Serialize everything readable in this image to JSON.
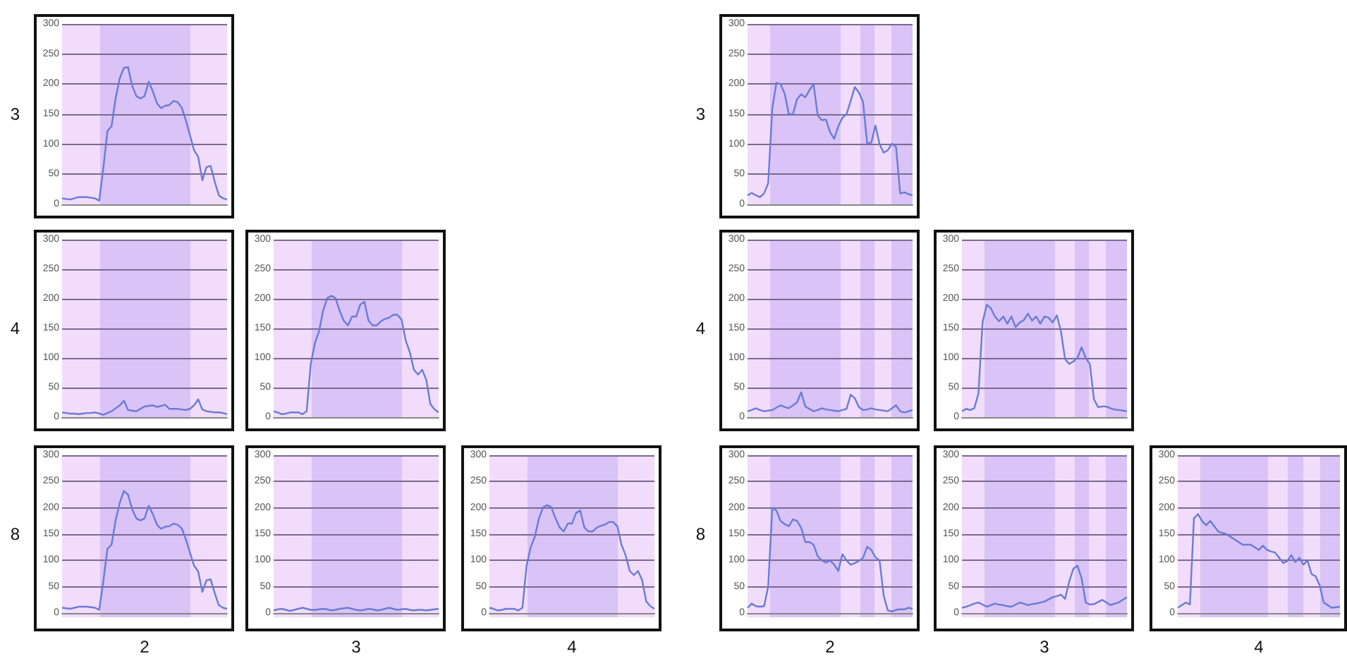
{
  "chart_data": [
    {
      "type": "line",
      "ylabel": "3",
      "color": "#6a7bd6",
      "categories": [
        null,
        null,
        null,
        null,
        null,
        null,
        null,
        null,
        null,
        null,
        null,
        null,
        null,
        null,
        null,
        null,
        null,
        null,
        null,
        null,
        null,
        null,
        null,
        null,
        null,
        null,
        null,
        null,
        null,
        null,
        null,
        null,
        null,
        null,
        null,
        null,
        null,
        null,
        null,
        null,
        null
      ],
      "values": [
        10,
        9,
        8,
        10,
        12,
        12,
        12,
        11,
        10,
        6,
        60,
        122,
        130,
        177,
        210,
        227,
        228,
        197,
        180,
        176,
        180,
        204,
        188,
        168,
        160,
        164,
        165,
        172,
        170,
        161,
        140,
        115,
        90,
        79,
        40,
        62,
        64,
        38,
        15,
        10,
        8
      ],
      "ylim": [
        0,
        300
      ],
      "yticks": [
        0,
        50,
        100,
        150,
        200,
        250,
        300
      ],
      "grid": "y",
      "tick_labels": "y"
    },
    {
      "type": "line",
      "ylabel": "3",
      "color": "#6a7bd6",
      "categories": [
        null,
        null,
        null,
        null,
        null,
        null,
        null,
        null,
        null,
        null,
        null,
        null,
        null,
        null,
        null,
        null,
        null,
        null,
        null,
        null,
        null,
        null,
        null,
        null,
        null,
        null,
        null,
        null,
        null,
        null,
        null,
        null,
        null,
        null,
        null,
        null,
        null,
        null,
        null,
        null,
        null
      ],
      "values": [
        15,
        19,
        15,
        12,
        18,
        35,
        160,
        202,
        200,
        184,
        150,
        150,
        175,
        183,
        178,
        190,
        200,
        148,
        140,
        141,
        120,
        109,
        130,
        144,
        150,
        172,
        195,
        186,
        170,
        101,
        103,
        131,
        100,
        86,
        90,
        101,
        95,
        18,
        20,
        17,
        15
      ],
      "ylim": [
        0,
        300
      ],
      "yticks": [
        0,
        50,
        100,
        150,
        200,
        250,
        300
      ],
      "grid": "y",
      "tick_labels": "y"
    },
    {
      "type": "line",
      "ylabel": "4",
      "color": "#6a7bd6",
      "categories": [
        null,
        null,
        null,
        null,
        null,
        null,
        null,
        null,
        null,
        null,
        null,
        null,
        null,
        null,
        null,
        null,
        null,
        null,
        null,
        null,
        null,
        null,
        null,
        null,
        null,
        null,
        null,
        null,
        null,
        null,
        null,
        null,
        null,
        null,
        null,
        null,
        null,
        null,
        null,
        null,
        null
      ],
      "values": [
        8,
        7,
        6,
        6,
        5,
        6,
        7,
        7,
        8,
        6,
        4,
        7,
        10,
        15,
        20,
        28,
        12,
        11,
        10,
        14,
        18,
        19,
        20,
        17,
        19,
        21,
        14,
        14,
        14,
        13,
        12,
        14,
        20,
        30,
        13,
        10,
        9,
        8,
        8,
        7,
        5
      ],
      "ylim": [
        0,
        300
      ],
      "yticks": [
        0,
        50,
        100,
        150,
        200,
        250,
        300
      ],
      "grid": "y",
      "tick_labels": "y"
    },
    {
      "type": "line",
      "color": "#6a7bd6",
      "categories": [
        null,
        null,
        null,
        null,
        null,
        null,
        null,
        null,
        null,
        null,
        null,
        null,
        null,
        null,
        null,
        null,
        null,
        null,
        null,
        null,
        null,
        null,
        null,
        null,
        null,
        null,
        null,
        null,
        null,
        null,
        null,
        null,
        null,
        null,
        null,
        null,
        null,
        null,
        null,
        null,
        null
      ],
      "values": [
        10,
        8,
        5,
        6,
        8,
        8,
        8,
        5,
        10,
        90,
        125,
        145,
        180,
        201,
        205,
        201,
        180,
        163,
        155,
        170,
        170,
        190,
        195,
        163,
        155,
        155,
        162,
        166,
        168,
        173,
        173,
        165,
        130,
        110,
        80,
        72,
        80,
        63,
        22,
        13,
        8
      ],
      "ylim": [
        0,
        300
      ],
      "yticks": [
        0,
        50,
        100,
        150,
        200,
        250,
        300
      ],
      "grid": "y",
      "tick_labels": "y"
    },
    {
      "type": "line",
      "ylabel": "4",
      "color": "#6a7bd6",
      "categories": [
        null,
        null,
        null,
        null,
        null,
        null,
        null,
        null,
        null,
        null,
        null,
        null,
        null,
        null,
        null,
        null,
        null,
        null,
        null,
        null,
        null,
        null,
        null,
        null,
        null,
        null,
        null,
        null,
        null,
        null,
        null,
        null,
        null,
        null,
        null,
        null,
        null,
        null,
        null,
        null,
        null
      ],
      "values": [
        10,
        12,
        15,
        12,
        10,
        11,
        12,
        16,
        20,
        17,
        15,
        20,
        25,
        42,
        18,
        14,
        10,
        12,
        15,
        13,
        12,
        11,
        10,
        12,
        14,
        38,
        32,
        17,
        12,
        13,
        15,
        13,
        12,
        11,
        10,
        15,
        20,
        10,
        8,
        10,
        12
      ],
      "ylim": [
        0,
        300
      ],
      "yticks": [
        0,
        50,
        100,
        150,
        200,
        250,
        300
      ],
      "grid": "y",
      "tick_labels": "y"
    },
    {
      "type": "line",
      "color": "#6a7bd6",
      "categories": [
        null,
        null,
        null,
        null,
        null,
        null,
        null,
        null,
        null,
        null,
        null,
        null,
        null,
        null,
        null,
        null,
        null,
        null,
        null,
        null,
        null,
        null,
        null,
        null,
        null,
        null,
        null,
        null,
        null,
        null,
        null,
        null,
        null,
        null,
        null,
        null,
        null,
        null,
        null,
        null,
        null
      ],
      "values": [
        10,
        14,
        12,
        15,
        40,
        160,
        190,
        184,
        170,
        162,
        170,
        158,
        170,
        152,
        160,
        164,
        175,
        163,
        170,
        158,
        170,
        168,
        160,
        172,
        145,
        98,
        90,
        94,
        100,
        118,
        100,
        90,
        30,
        17,
        18,
        18,
        15,
        13,
        12,
        11,
        10
      ],
      "ylim": [
        0,
        300
      ],
      "yticks": [
        0,
        50,
        100,
        150,
        200,
        250,
        300
      ],
      "grid": "y",
      "tick_labels": "y"
    },
    {
      "type": "line",
      "ylabel": "8",
      "xlabel": "2",
      "color": "#6a7bd6",
      "categories": [
        null,
        null,
        null,
        null,
        null,
        null,
        null,
        null,
        null,
        null,
        null,
        null,
        null,
        null,
        null,
        null,
        null,
        null,
        null,
        null,
        null,
        null,
        null,
        null,
        null,
        null,
        null,
        null,
        null,
        null,
        null,
        null,
        null,
        null,
        null,
        null,
        null,
        null,
        null,
        null,
        null
      ],
      "values": [
        10,
        9,
        8,
        10,
        12,
        12,
        12,
        11,
        10,
        6,
        60,
        122,
        130,
        177,
        210,
        232,
        225,
        197,
        180,
        176,
        180,
        204,
        188,
        168,
        160,
        164,
        165,
        170,
        168,
        161,
        140,
        115,
        90,
        79,
        40,
        62,
        64,
        38,
        15,
        10,
        8
      ],
      "ylim": [
        0,
        300
      ],
      "yticks": [
        0,
        50,
        100,
        150,
        200,
        250,
        300
      ],
      "grid": "y",
      "tick_labels": "y"
    },
    {
      "type": "line",
      "xlabel": "3",
      "color": "#6a7bd6",
      "categories": [
        null,
        null,
        null,
        null,
        null,
        null,
        null,
        null,
        null,
        null,
        null,
        null,
        null,
        null,
        null,
        null,
        null,
        null,
        null,
        null,
        null,
        null,
        null,
        null,
        null,
        null,
        null,
        null,
        null,
        null,
        null,
        null,
        null,
        null,
        null,
        null,
        null,
        null,
        null,
        null,
        null
      ],
      "values": [
        5,
        7,
        8,
        6,
        4,
        6,
        8,
        10,
        8,
        6,
        6,
        7,
        8,
        7,
        5,
        6,
        8,
        9,
        10,
        8,
        6,
        5,
        6,
        8,
        7,
        5,
        6,
        8,
        10,
        8,
        6,
        7,
        8,
        6,
        5,
        6,
        6,
        5,
        6,
        7,
        8
      ],
      "ylim": [
        0,
        300
      ],
      "yticks": [
        0,
        50,
        100,
        150,
        200,
        250,
        300
      ],
      "grid": "y",
      "tick_labels": "y"
    },
    {
      "type": "line",
      "xlabel": "4",
      "color": "#6a7bd6",
      "categories": [
        null,
        null,
        null,
        null,
        null,
        null,
        null,
        null,
        null,
        null,
        null,
        null,
        null,
        null,
        null,
        null,
        null,
        null,
        null,
        null,
        null,
        null,
        null,
        null,
        null,
        null,
        null,
        null,
        null,
        null,
        null,
        null,
        null,
        null,
        null,
        null,
        null,
        null,
        null,
        null,
        null
      ],
      "values": [
        10,
        8,
        5,
        6,
        8,
        8,
        8,
        5,
        10,
        90,
        125,
        145,
        180,
        201,
        205,
        201,
        180,
        163,
        155,
        170,
        170,
        190,
        195,
        163,
        155,
        155,
        162,
        166,
        168,
        173,
        173,
        165,
        130,
        110,
        80,
        72,
        80,
        63,
        22,
        13,
        8
      ],
      "ylim": [
        0,
        300
      ],
      "yticks": [
        0,
        50,
        100,
        150,
        200,
        250,
        300
      ],
      "grid": "y",
      "tick_labels": "y"
    },
    {
      "type": "line",
      "ylabel": "8",
      "xlabel": "2",
      "color": "#6a7bd6",
      "categories": [
        null,
        null,
        null,
        null,
        null,
        null,
        null,
        null,
        null,
        null,
        null,
        null,
        null,
        null,
        null,
        null,
        null,
        null,
        null,
        null,
        null,
        null,
        null,
        null,
        null,
        null,
        null,
        null,
        null,
        null,
        null,
        null,
        null,
        null,
        null,
        null,
        null,
        null,
        null,
        null,
        null
      ],
      "values": [
        10,
        18,
        13,
        12,
        13,
        50,
        200,
        195,
        175,
        169,
        165,
        178,
        175,
        162,
        135,
        135,
        130,
        108,
        100,
        96,
        100,
        92,
        80,
        112,
        100,
        92,
        95,
        99,
        105,
        126,
        120,
        106,
        100,
        33,
        5,
        3,
        6,
        7,
        7,
        10,
        8
      ],
      "ylim": [
        0,
        300
      ],
      "yticks": [
        0,
        50,
        100,
        150,
        200,
        250,
        300
      ],
      "grid": "y",
      "tick_labels": "y"
    },
    {
      "type": "line",
      "xlabel": "3",
      "color": "#6a7bd6",
      "categories": [
        null,
        null,
        null,
        null,
        null,
        null,
        null,
        null,
        null,
        null,
        null,
        null,
        null,
        null,
        null,
        null,
        null,
        null,
        null,
        null,
        null,
        null,
        null,
        null,
        null,
        null,
        null,
        null,
        null,
        null,
        null,
        null,
        null,
        null,
        null,
        null,
        null,
        null,
        null,
        null,
        null
      ],
      "values": [
        10,
        12,
        15,
        18,
        20,
        16,
        12,
        15,
        18,
        16,
        15,
        13,
        12,
        16,
        20,
        18,
        15,
        17,
        18,
        20,
        22,
        26,
        30,
        32,
        35,
        27,
        60,
        84,
        90,
        66,
        20,
        16,
        17,
        21,
        25,
        20,
        15,
        18,
        20,
        25,
        30
      ],
      "ylim": [
        0,
        300
      ],
      "yticks": [
        0,
        50,
        100,
        150,
        200,
        250,
        300
      ],
      "grid": "y",
      "tick_labels": "y"
    },
    {
      "type": "line",
      "xlabel": "4",
      "color": "#6a7bd6",
      "categories": [
        null,
        null,
        null,
        null,
        null,
        null,
        null,
        null,
        null,
        null,
        null,
        null,
        null,
        null,
        null,
        null,
        null,
        null,
        null,
        null,
        null,
        null,
        null,
        null,
        null,
        null,
        null,
        null,
        null,
        null,
        null,
        null,
        null,
        null,
        null,
        null,
        null,
        null,
        null,
        null,
        null
      ],
      "values": [
        10,
        15,
        20,
        16,
        180,
        188,
        175,
        167,
        175,
        165,
        155,
        152,
        150,
        145,
        140,
        135,
        130,
        130,
        130,
        125,
        120,
        128,
        120,
        117,
        115,
        105,
        95,
        99,
        110,
        97,
        105,
        92,
        100,
        74,
        70,
        53,
        20,
        15,
        10,
        11,
        12
      ],
      "ylim": [
        0,
        300
      ],
      "yticks": [
        0,
        50,
        100,
        150,
        200,
        250,
        300
      ],
      "grid": "y",
      "tick_labels": "y"
    }
  ]
}
